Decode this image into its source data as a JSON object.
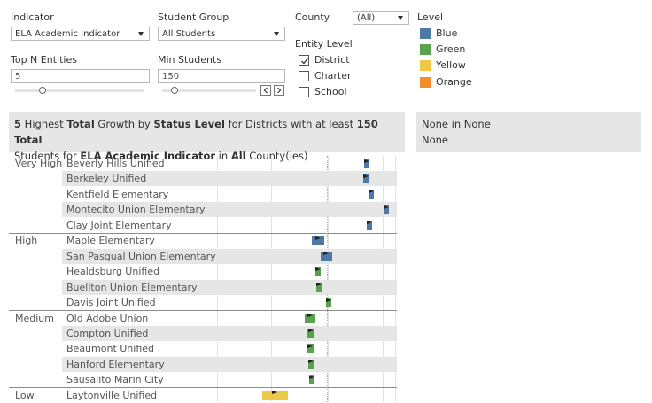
{
  "filters": {
    "indicator": {
      "label": "Indicator",
      "value": "ELA Academic Indicator"
    },
    "student_group": {
      "label": "Student Group",
      "value": "All Students"
    },
    "county": {
      "label": "County",
      "value": "(All)"
    },
    "top_n": {
      "label": "Top N Entities",
      "value": "5"
    },
    "min_students": {
      "label": "Min Students",
      "value": "150"
    },
    "entity_level": {
      "label": "Entity Level",
      "options": [
        {
          "label": "District",
          "checked": true
        },
        {
          "label": "Charter",
          "checked": false
        },
        {
          "label": "School",
          "checked": false
        }
      ]
    }
  },
  "legend": {
    "title": "Level",
    "items": [
      {
        "label": "Blue",
        "color": "#4e79a7"
      },
      {
        "label": "Green",
        "color": "#59a14f"
      },
      {
        "label": "Yellow",
        "color": "#edc948"
      },
      {
        "label": "Orange",
        "color": "#f28e2b"
      }
    ]
  },
  "title": {
    "n": "5",
    "t1": " Highest ",
    "b1": "Total",
    "t2": " Growth by ",
    "b2": "Status Level",
    "t3": " for Districts with at least ",
    "b3": "150 Total",
    "t4": "Students for ",
    "b4": "ELA Academic Indicator",
    "t5": " in ",
    "b5": "All",
    "t6": " County(ies)"
  },
  "side_panel": {
    "line1": "None in None",
    "line2": "None"
  },
  "chart_data": {
    "type": "bar",
    "groups": [
      {
        "name": "Very High",
        "rows": [
          {
            "label": "Beverly Hills Unified",
            "status": 0.885,
            "change": 0.02,
            "color": "#4e79a7"
          },
          {
            "label": "Berkeley Unified",
            "status": 0.88,
            "change": 0.02,
            "color": "#4e79a7"
          },
          {
            "label": "Kentfield Elementary",
            "status": 0.915,
            "change": 0.02,
            "color": "#4e79a7"
          },
          {
            "label": "Montecito Union Elementary",
            "status": 1.0,
            "change": 0.02,
            "color": "#4e79a7"
          },
          {
            "label": "Clay Joint Elementary",
            "status": 0.9,
            "change": 0.015,
            "color": "#4e79a7"
          }
        ]
      },
      {
        "name": "High",
        "rows": [
          {
            "label": "Maple Elementary",
            "status": 0.6,
            "change": 0.05,
            "color": "#4e79a7"
          },
          {
            "label": "San Pasqual Union Elementary",
            "status": 0.65,
            "change": 0.045,
            "color": "#4e79a7"
          },
          {
            "label": "Healdsburg Unified",
            "status": 0.6,
            "change": 0.02,
            "color": "#59a14f"
          },
          {
            "label": "Buellton Union Elementary",
            "status": 0.605,
            "change": 0.02,
            "color": "#59a14f"
          },
          {
            "label": "Davis Joint Unified",
            "status": 0.665,
            "change": 0.02,
            "color": "#59a14f"
          }
        ]
      },
      {
        "name": "Medium",
        "rows": [
          {
            "label": "Old Adobe Union",
            "status": 0.555,
            "change": 0.04,
            "color": "#59a14f"
          },
          {
            "label": "Compton Unified",
            "status": 0.56,
            "change": 0.03,
            "color": "#59a14f"
          },
          {
            "label": "Beaumont Unified",
            "status": 0.555,
            "change": 0.03,
            "color": "#59a14f"
          },
          {
            "label": "Hanford Elementary",
            "status": 0.56,
            "change": 0.02,
            "color": "#59a14f"
          },
          {
            "label": "Sausalito Marin City",
            "status": 0.565,
            "change": 0.02,
            "color": "#59a14f"
          }
        ]
      },
      {
        "name": "Low",
        "rows": [
          {
            "label": "Laytonville Unified",
            "status": 0.35,
            "change": 0.1,
            "color": "#edc948"
          }
        ]
      }
    ]
  }
}
